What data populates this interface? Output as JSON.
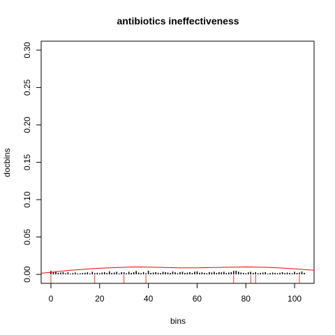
{
  "chart_data": {
    "type": "bar",
    "title": "antibiotics ineffectiveness",
    "xlabel": "bins",
    "ylabel": "docbins",
    "xlim": [
      -4,
      108
    ],
    "ylim": [
      -0.012,
      0.312
    ],
    "xticks": [
      0,
      20,
      40,
      60,
      80,
      100
    ],
    "yticks": [
      0.0,
      0.05,
      0.1,
      0.15,
      0.2,
      0.25,
      0.3
    ],
    "ytick_labels": [
      "0.00",
      "0.05",
      "0.10",
      "0.15",
      "0.20",
      "0.25",
      "0.30"
    ],
    "series": [
      {
        "name": "histogram",
        "color": "#000000",
        "x": [
          0,
          1,
          2,
          3,
          4,
          5,
          6,
          7,
          8,
          9,
          10,
          11,
          12,
          13,
          14,
          15,
          16,
          17,
          18,
          19,
          20,
          21,
          22,
          23,
          24,
          25,
          26,
          27,
          28,
          29,
          30,
          31,
          32,
          33,
          34,
          35,
          36,
          37,
          38,
          39,
          40,
          41,
          42,
          43,
          44,
          45,
          46,
          47,
          48,
          49,
          50,
          51,
          52,
          53,
          54,
          55,
          56,
          57,
          58,
          59,
          60,
          61,
          62,
          63,
          64,
          65,
          66,
          67,
          68,
          69,
          70,
          71,
          72,
          73,
          74,
          75,
          76,
          77,
          78,
          79,
          80,
          81,
          82,
          83,
          84,
          85,
          86,
          87,
          88,
          89,
          90,
          91,
          92,
          93,
          94,
          95,
          96,
          97,
          98,
          99,
          100,
          101,
          102,
          103,
          104
        ],
        "values": [
          0.0045,
          0.003,
          0.0035,
          0.002,
          0.0025,
          0.003,
          0.0015,
          0.0028,
          0.001,
          0.0018,
          0.0025,
          0.0012,
          0.0015,
          0.002,
          0.0022,
          0.0028,
          0.0012,
          0.0035,
          0.0018,
          0.0022,
          0.0015,
          0.0025,
          0.003,
          0.0018,
          0.004,
          0.002,
          0.0025,
          0.0035,
          0.0012,
          0.003,
          0.0028,
          0.0015,
          0.0035,
          0.002,
          0.003,
          0.0045,
          0.0025,
          0.0018,
          0.003,
          0.0015,
          0.0048,
          0.002,
          0.0025,
          0.003,
          0.0022,
          0.0018,
          0.0035,
          0.003,
          0.0025,
          0.002,
          0.0038,
          0.0028,
          0.0015,
          0.003,
          0.0035,
          0.002,
          0.0025,
          0.003,
          0.0018,
          0.0035,
          0.004,
          0.0022,
          0.0028,
          0.002,
          0.0015,
          0.003,
          0.0025,
          0.0035,
          0.002,
          0.003,
          0.0028,
          0.0035,
          0.0018,
          0.0025,
          0.003,
          0.0045,
          0.0048,
          0.0035,
          0.0025,
          0.002,
          0.0015,
          0.0028,
          0.0035,
          0.002,
          0.003,
          0.0015,
          0.002,
          0.0025,
          0.003,
          0.0012,
          0.0018,
          0.0025,
          0.002,
          0.0015,
          0.0022,
          0.003,
          0.0018,
          0.0025,
          0.002,
          0.0015,
          0.0035,
          0.002,
          0.0025,
          0.0038,
          0.002
        ]
      },
      {
        "name": "density",
        "color": "#ff0000",
        "x": [
          -4,
          0,
          4,
          8,
          12,
          16,
          20,
          24,
          28,
          32,
          36,
          40,
          44,
          48,
          52,
          56,
          60,
          64,
          68,
          72,
          76,
          80,
          84,
          88,
          92,
          96,
          100,
          104,
          108
        ],
        "values": [
          0.0015,
          0.0028,
          0.0042,
          0.0055,
          0.0065,
          0.0074,
          0.0082,
          0.0088,
          0.0093,
          0.0097,
          0.0099,
          0.0098,
          0.0095,
          0.0091,
          0.0088,
          0.0087,
          0.0088,
          0.009,
          0.0093,
          0.0096,
          0.0098,
          0.0099,
          0.0098,
          0.0095,
          0.009,
          0.0083,
          0.0074,
          0.0065,
          0.0055
        ]
      }
    ],
    "rug": {
      "color": "#ff0000",
      "x": [
        0,
        18,
        30,
        39,
        75,
        82,
        84,
        102
      ]
    }
  }
}
